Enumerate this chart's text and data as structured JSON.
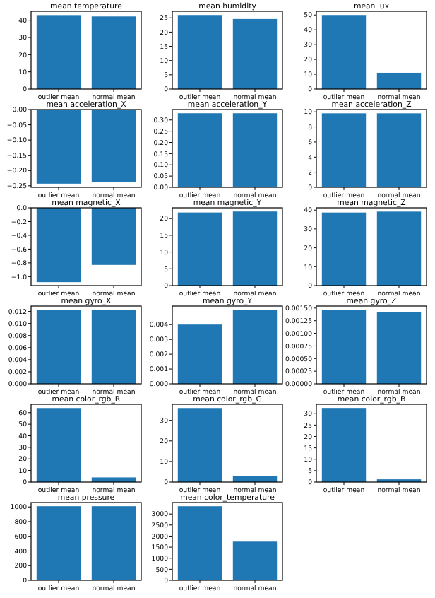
{
  "chart_data": [
    {
      "type": "bar",
      "title": "mean temperature",
      "categories": [
        "outlier mean",
        "normal mean"
      ],
      "values": [
        43,
        42.2
      ],
      "color": "#1f77b4",
      "ylim": [
        0,
        45.2
      ],
      "yticks": [
        0,
        10,
        20,
        30,
        40
      ]
    },
    {
      "type": "bar",
      "title": "mean humidity",
      "categories": [
        "outlier mean",
        "normal mean"
      ],
      "values": [
        26,
        24.6
      ],
      "color": "#1f77b4",
      "ylim": [
        0,
        27.3
      ],
      "yticks": [
        0,
        5,
        10,
        15,
        20,
        25
      ]
    },
    {
      "type": "bar",
      "title": "mean lux",
      "categories": [
        "outlier mean",
        "normal mean"
      ],
      "values": [
        50,
        11
      ],
      "color": "#1f77b4",
      "ylim": [
        0,
        52.5
      ],
      "yticks": [
        0,
        10,
        20,
        30,
        40,
        50
      ]
    },
    {
      "type": "bar",
      "title": "mean acceleration_X",
      "categories": [
        "outlier mean",
        "normal mean"
      ],
      "values": [
        -0.243,
        -0.238
      ],
      "color": "#1f77b4",
      "ylim": [
        -0.255,
        0
      ],
      "yticks": [
        {
          "value": -0.25,
          "label": "−0.25"
        },
        {
          "value": -0.2,
          "label": "−0.20"
        },
        {
          "value": -0.15,
          "label": "−0.15"
        },
        {
          "value": -0.1,
          "label": "−0.10"
        },
        {
          "value": -0.05,
          "label": "−0.05"
        },
        {
          "value": 0,
          "label": "0.00"
        }
      ]
    },
    {
      "type": "bar",
      "title": "mean acceleration_Y",
      "categories": [
        "outlier mean",
        "normal mean"
      ],
      "values": [
        0.33,
        0.33
      ],
      "color": "#1f77b4",
      "ylim": [
        0,
        0.3465
      ],
      "yticks": [
        {
          "value": 0,
          "label": "0.00"
        },
        0.05,
        {
          "value": 0.1,
          "label": "0.10"
        },
        0.15,
        {
          "value": 0.2,
          "label": "0.20"
        },
        0.25,
        {
          "value": 0.3,
          "label": "0.30"
        }
      ]
    },
    {
      "type": "bar",
      "title": "mean acceleration_Z",
      "categories": [
        "outlier mean",
        "normal mean"
      ],
      "values": [
        9.8,
        9.8
      ],
      "color": "#1f77b4",
      "ylim": [
        0,
        10.3
      ],
      "yticks": [
        0,
        2,
        4,
        6,
        8,
        10
      ]
    },
    {
      "type": "bar",
      "title": "mean magnetic_X",
      "categories": [
        "outlier mean",
        "normal mean"
      ],
      "values": [
        -1.08,
        -0.83
      ],
      "color": "#1f77b4",
      "ylim": [
        -1.13,
        0
      ],
      "yticks": [
        {
          "value": -1,
          "label": "−1.0"
        },
        {
          "value": -0.8,
          "label": "−0.8"
        },
        {
          "value": -0.6,
          "label": "−0.6"
        },
        {
          "value": -0.4,
          "label": "−0.4"
        },
        {
          "value": -0.2,
          "label": "−0.2"
        },
        {
          "value": 0,
          "label": "0.0"
        }
      ]
    },
    {
      "type": "bar",
      "title": "mean magnetic_Y",
      "categories": [
        "outlier mean",
        "normal mean"
      ],
      "values": [
        21.8,
        22.1
      ],
      "color": "#1f77b4",
      "ylim": [
        0,
        23.2
      ],
      "yticks": [
        0,
        5,
        10,
        15,
        20
      ]
    },
    {
      "type": "bar",
      "title": "mean magnetic_Z",
      "categories": [
        "outlier mean",
        "normal mean"
      ],
      "values": [
        38.7,
        39.2
      ],
      "color": "#1f77b4",
      "ylim": [
        0,
        41.2
      ],
      "yticks": [
        0,
        10,
        20,
        30,
        40
      ]
    },
    {
      "type": "bar",
      "title": "mean gyro_X",
      "categories": [
        "outlier mean",
        "normal mean"
      ],
      "values": [
        0.0122,
        0.0123
      ],
      "color": "#1f77b4",
      "ylim": [
        0,
        0.0129
      ],
      "yticks": [
        {
          "value": 0,
          "label": "0.000"
        },
        0.002,
        0.004,
        0.006,
        0.008,
        {
          "value": 0.01,
          "label": "0.010"
        },
        0.012
      ]
    },
    {
      "type": "bar",
      "title": "mean gyro_Y",
      "categories": [
        "outlier mean",
        "normal mean"
      ],
      "values": [
        0.004,
        0.005
      ],
      "color": "#1f77b4",
      "ylim": [
        0,
        0.00525
      ],
      "yticks": [
        {
          "value": 0,
          "label": "0.000"
        },
        {
          "value": 0.001,
          "label": "0.001"
        },
        {
          "value": 0.002,
          "label": "0.002"
        },
        {
          "value": 0.003,
          "label": "0.003"
        },
        {
          "value": 0.004,
          "label": "0.004"
        }
      ]
    },
    {
      "type": "bar",
      "title": "mean gyro_Z",
      "categories": [
        "outlier mean",
        "normal mean"
      ],
      "values": [
        0.00147,
        0.00142
      ],
      "color": "#1f77b4",
      "ylim": [
        0,
        0.00154
      ],
      "yticks": [
        {
          "value": 0,
          "label": "0.00000"
        },
        {
          "value": 0.00025,
          "label": "0.00025"
        },
        {
          "value": 0.0005,
          "label": "0.00050"
        },
        {
          "value": 0.00075,
          "label": "0.00075"
        },
        {
          "value": 0.001,
          "label": "0.00100"
        },
        {
          "value": 0.00125,
          "label": "0.00125"
        },
        {
          "value": 0.0015,
          "label": "0.00150"
        }
      ]
    },
    {
      "type": "bar",
      "title": "mean color_rgb_R",
      "categories": [
        "outlier mean",
        "normal mean"
      ],
      "values": [
        64,
        4
      ],
      "color": "#1f77b4",
      "ylim": [
        0,
        67.2
      ],
      "yticks": [
        0,
        10,
        20,
        30,
        40,
        50,
        60
      ]
    },
    {
      "type": "bar",
      "title": "mean color_rgb_G",
      "categories": [
        "outlier mean",
        "normal mean"
      ],
      "values": [
        36,
        3
      ],
      "color": "#1f77b4",
      "ylim": [
        0,
        37.8
      ],
      "yticks": [
        0,
        10,
        20,
        30
      ]
    },
    {
      "type": "bar",
      "title": "mean color_rgb_B",
      "categories": [
        "outlier mean",
        "normal mean"
      ],
      "values": [
        32.5,
        1.2
      ],
      "color": "#1f77b4",
      "ylim": [
        0,
        34.1
      ],
      "yticks": [
        0,
        5,
        10,
        15,
        20,
        25,
        30
      ]
    },
    {
      "type": "bar",
      "title": "mean pressure",
      "categories": [
        "outlier mean",
        "normal mean"
      ],
      "values": [
        1010,
        1010
      ],
      "color": "#1f77b4",
      "ylim": [
        0,
        1060
      ],
      "yticks": [
        0,
        200,
        400,
        600,
        800,
        1000
      ]
    },
    {
      "type": "bar",
      "title": "mean color_temperature",
      "categories": [
        "outlier mean",
        "normal mean"
      ],
      "values": [
        3350,
        1750
      ],
      "color": "#1f77b4",
      "ylim": [
        0,
        3517
      ],
      "yticks": [
        0,
        500,
        1000,
        1500,
        2000,
        2500,
        3000
      ]
    }
  ]
}
